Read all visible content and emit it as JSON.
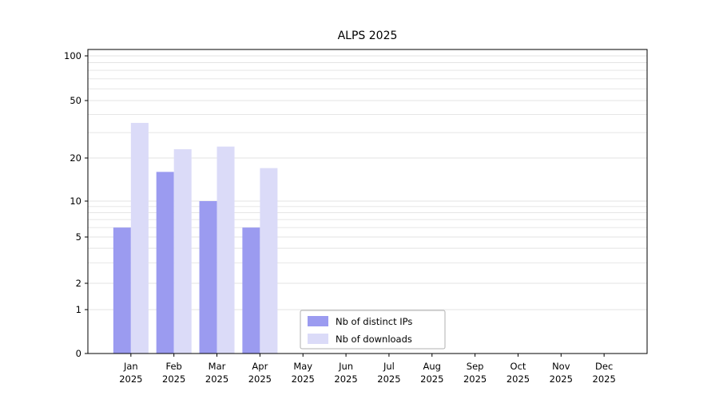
{
  "chart_data": {
    "type": "bar",
    "title": "ALPS 2025",
    "categories": [
      "Jan",
      "Feb",
      "Mar",
      "Apr",
      "May",
      "Jun",
      "Jul",
      "Aug",
      "Sep",
      "Oct",
      "Nov",
      "Dec"
    ],
    "x_sublabel_year": "2025",
    "series": [
      {
        "name": "Nb of distinct IPs",
        "color": "#9b9bf0",
        "values": [
          6,
          16,
          10,
          6,
          0,
          0,
          0,
          0,
          0,
          0,
          0,
          0
        ]
      },
      {
        "name": "Nb of downloads",
        "color": "#dbdbf8",
        "values": [
          35,
          23,
          24,
          17,
          0,
          0,
          0,
          0,
          0,
          0,
          0,
          0
        ]
      }
    ],
    "y_axis": {
      "tick_labels": [
        "0",
        "1",
        "2",
        "5",
        "10",
        "20",
        "50",
        "100"
      ],
      "tick_values": [
        0,
        1,
        2,
        5,
        10,
        20,
        50,
        100
      ],
      "scale": "symlog",
      "min": 0,
      "max": 110
    },
    "grid": "on",
    "legend": {
      "position": "lower-center",
      "entries": [
        "Nb of distinct IPs",
        "Nb of downloads"
      ]
    }
  }
}
